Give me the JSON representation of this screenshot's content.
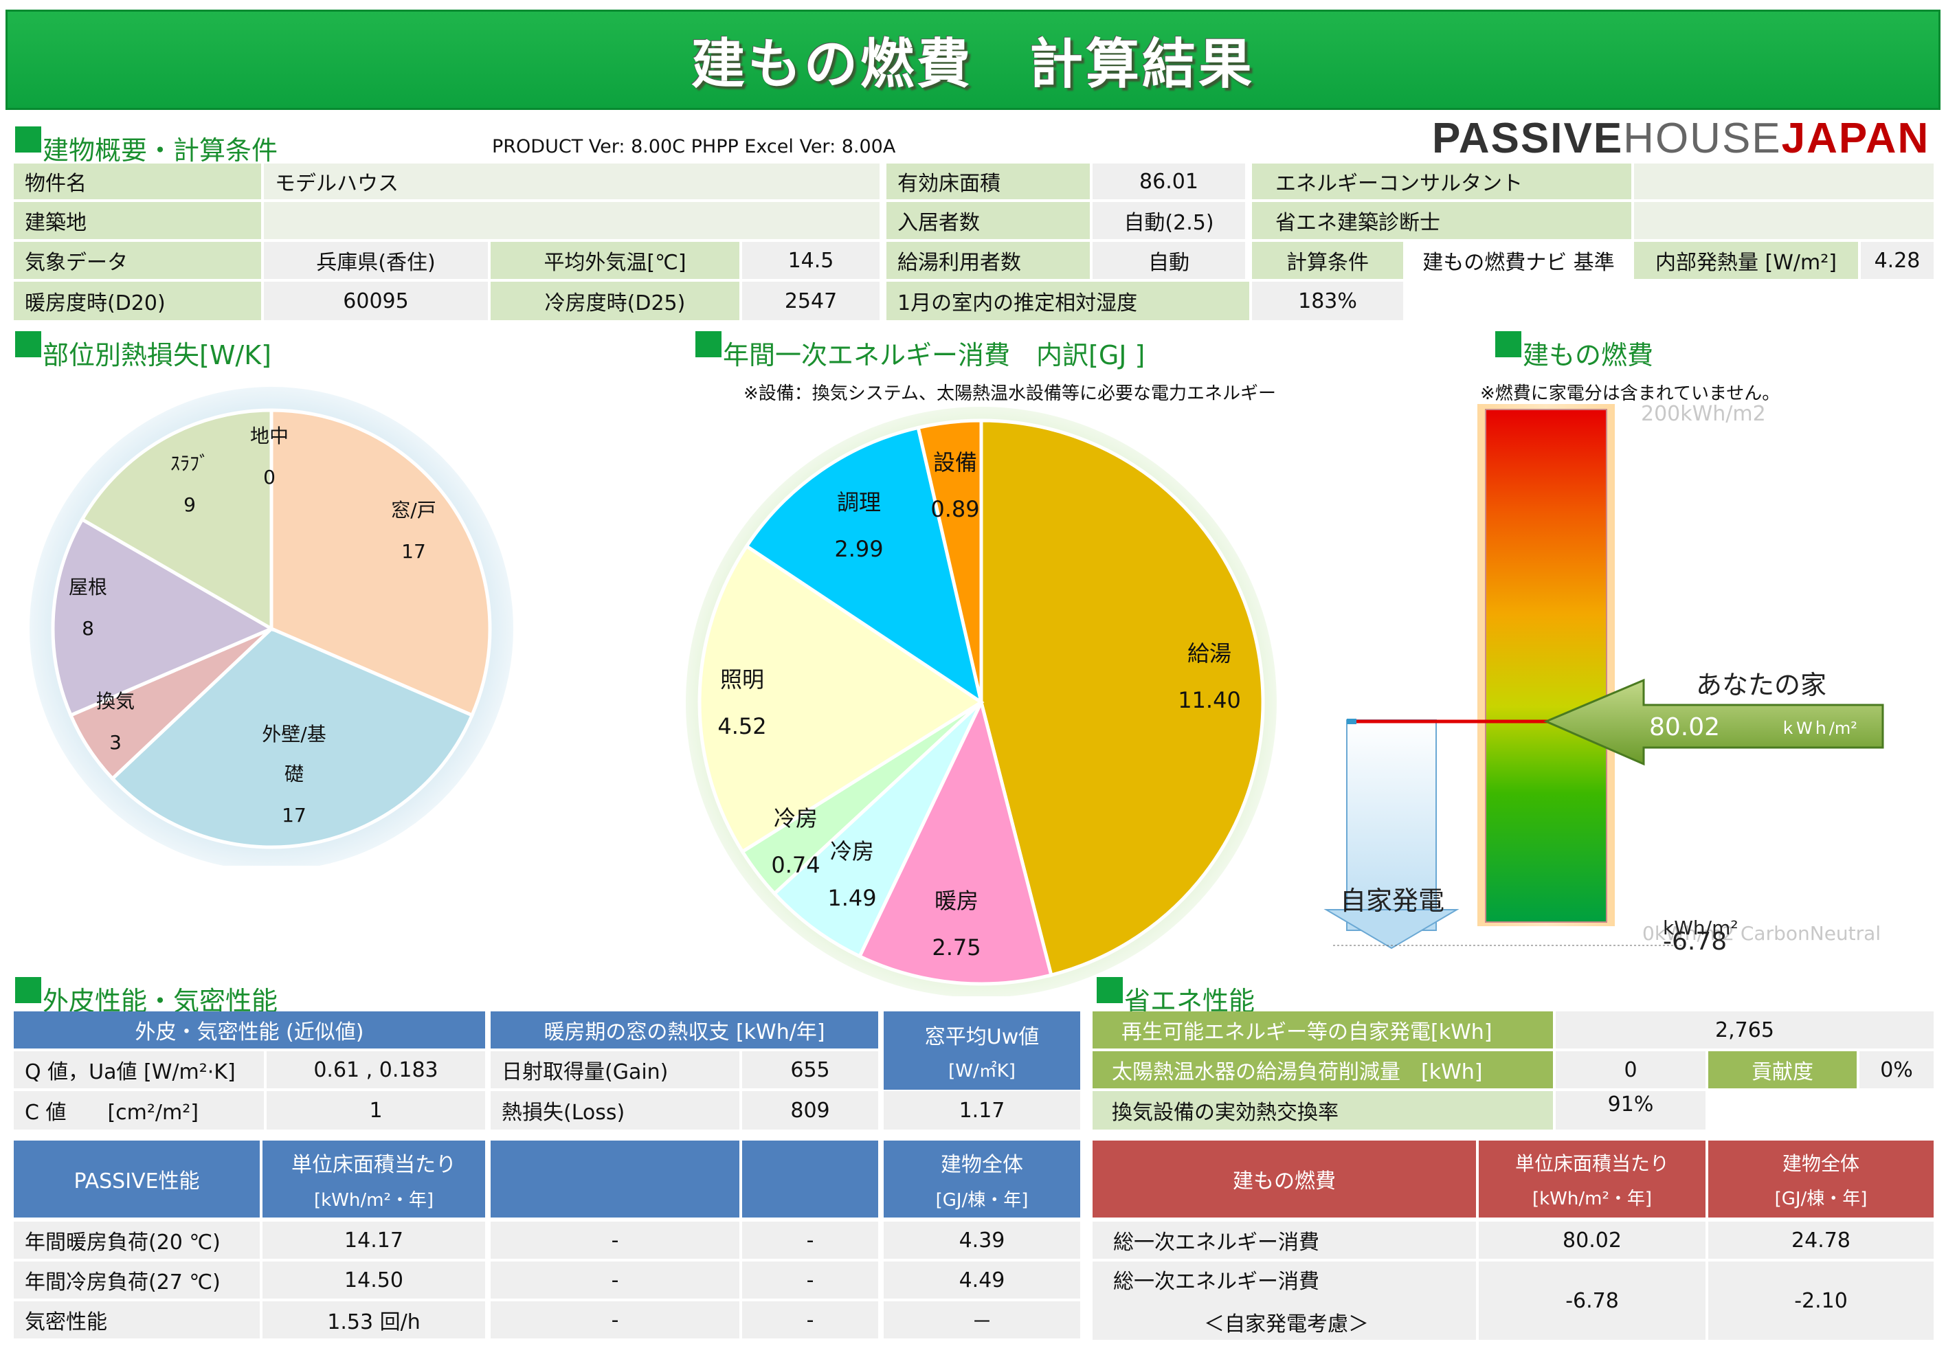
{
  "header": {
    "title": "建もの燃費　計算結果",
    "logo_a": "PASSIVE",
    "logo_b": "HOUSE",
    "logo_c": "JAPAN"
  },
  "overview": {
    "heading": "建物概要・計算条件",
    "version": "PRODUCT Ver: 8.00C  PHPP Excel Ver: 8.00A",
    "property_label": "物件名",
    "property_value": "モデルハウス",
    "site_label": "建築地",
    "site_value": "",
    "weather_label": "気象データ",
    "weather_value": "兵庫県(香住)",
    "avg_temp_label": "平均外気温[℃]",
    "avg_temp_value": "14.5",
    "hdd_label": "暖房度時(D20)",
    "hdd_value": "60095",
    "cdd_label": "冷房度時(D25)",
    "cdd_value": "2547",
    "floor_area_label": "有効床面積",
    "floor_area_value": "86.01",
    "occupants_label": "入居者数",
    "occupants_value": "自動(2.5)",
    "hotwater_users_label": "給湯利用者数",
    "hotwater_users_value": "自動",
    "humidity_label": "1月の室内の推定相対湿度",
    "humidity_value": "183%",
    "consultant_label": "エネルギーコンサルタント",
    "consultant_value": "",
    "diagnostician_label": "省エネ建築診断士",
    "diagnostician_value": "",
    "calc_cond_label": "計算条件",
    "calc_cond_value": "建もの燃費ナビ 基準",
    "internal_gain_label": "内部発熱量 [W/m²]",
    "internal_gain_value": "4.28"
  },
  "heat_loss": {
    "heading": "部位別熱損失[W/K]",
    "chart_data": {
      "type": "pie",
      "title": "部位別熱損失[W/K]",
      "slices": [
        {
          "label": "窓/戸",
          "value": 17,
          "color": "#fbd5b5"
        },
        {
          "label": "外壁/基礎",
          "value": 17,
          "color": "#b7dde8"
        },
        {
          "label": "換気",
          "value": 3,
          "color": "#e6b9b8"
        },
        {
          "label": "屋根",
          "value": 8,
          "color": "#ccc1da"
        },
        {
          "label": "ｽﾗﾌﾞ",
          "value": 9,
          "color": "#d7e4bd"
        },
        {
          "label": "地中",
          "value": 0,
          "color": "#c3d69b"
        }
      ],
      "labels": [
        {
          "text": "窓/戸",
          "value": "17"
        },
        {
          "text": "外壁/基",
          "text2": "礎",
          "value": "17"
        },
        {
          "text": "換気",
          "value": "3"
        },
        {
          "text": "屋根",
          "value": "8"
        },
        {
          "text": "ｽﾗﾌﾞ",
          "value": "9"
        },
        {
          "text": "地中",
          "value": "0"
        }
      ]
    }
  },
  "energy": {
    "heading": "年間一次エネルギー消費　内訳[GJ ]",
    "note": "※設備：換気システム、太陽熱温水設備等に必要な電力エネルギー",
    "chart_data": {
      "type": "pie",
      "title": "年間一次エネルギー消費　内訳[GJ ]",
      "slices": [
        {
          "label": "給湯",
          "value": 11.4,
          "color": "#e5b800"
        },
        {
          "label": "暖房",
          "value": 2.75,
          "color": "#ff99cc"
        },
        {
          "label": "冷房",
          "value": 1.49,
          "color": "#ccffff"
        },
        {
          "label": "冷房",
          "value": 0.74,
          "color": "#ccffcc"
        },
        {
          "label": "照明",
          "value": 4.52,
          "color": "#ffffcc"
        },
        {
          "label": "調理",
          "value": 2.99,
          "color": "#00ccff"
        },
        {
          "label": "設備",
          "value": 0.89,
          "color": "#ff9900"
        }
      ],
      "labels": [
        {
          "text": "給湯",
          "value": "11.40"
        },
        {
          "text": "暖房",
          "value": "2.75"
        },
        {
          "text": "冷房",
          "value": "1.49"
        },
        {
          "text": "冷房",
          "value": "0.74"
        },
        {
          "text": "照明",
          "value": "4.52"
        },
        {
          "text": "調理",
          "value": "2.99"
        },
        {
          "text": "設備",
          "value": "0.89"
        }
      ]
    }
  },
  "fuel": {
    "heading": "建もの燃費",
    "note": "※燃費に家電分は含まれていません。",
    "scale_top": "200kWh/m2",
    "scale_bottom": "0kWh/m2 CarbonNeutral",
    "your_home_label": "あなたの家",
    "your_home_value": "80.02",
    "your_home_unit": "ｋWｈ/m²",
    "self_gen_label": "自家発電",
    "self_gen_value": "-6.78",
    "self_gen_unit": "kWh/m²",
    "chart_data": {
      "type": "bar",
      "title": "建もの燃費",
      "scale": [
        0,
        200
      ],
      "your_home": 80.02,
      "self_generation": -6.78
    }
  },
  "envelope": {
    "heading": "外皮性能・気密性能",
    "col1_header": "外皮・気密性能 (近似値)",
    "col2_header": "暖房期の窓の熱収支 [kWh/年]",
    "col3_header_a": "窓平均Uw値",
    "col3_header_b": "[W/㎡K]",
    "q_label": "Q 値，Ua値 [W/m²·K]",
    "q_value": "0.61 , 0.183",
    "c_label": "C 値　　[cm²/m²]",
    "c_value": "1",
    "gain_label": "日射取得量(Gain)",
    "gain_value": "655",
    "loss_label": "熱損失(Loss)",
    "loss_value": "809",
    "uw_value": "1.17"
  },
  "passive": {
    "header_title": "PASSIVE性能",
    "header_unit_area_a": "単位床面積当たり",
    "header_unit_area_b": "[kWh/m²・年]",
    "header_total_a": "建物全体",
    "header_total_b": "[GJ/棟・年]",
    "rows": [
      {
        "label": "年間暖房負荷(20 ℃)",
        "area": "14.17",
        "c3": "-",
        "c4": "-",
        "total": "4.39"
      },
      {
        "label": "年間冷房負荷(27 ℃)",
        "area": "14.50",
        "c3": "-",
        "c4": "-",
        "total": "4.49"
      },
      {
        "label": "気密性能",
        "area": "1.53 回/h",
        "c3": "-",
        "c4": "-",
        "total": "－"
      }
    ]
  },
  "savings": {
    "heading": "省エネ性能",
    "renew_label": "再生可能エネルギー等の自家発電[kWh]",
    "renew_value": "2,765",
    "solar_label": "太陽熱温水器の給湯負荷削減量　[kWh]",
    "solar_value": "0",
    "contrib_label": "貢献度",
    "contrib_value": "0%",
    "vent_label": "換気設備の実効熱交換率",
    "vent_value": "91%"
  },
  "fuel_table": {
    "header_title": "建もの燃費",
    "header_unit_area_a": "単位床面積当たり",
    "header_unit_area_b": "[kWh/m²・年]",
    "header_total_a": "建物全体",
    "header_total_b": "[GJ/棟・年]",
    "row1_label": "総一次エネルギー消費",
    "row1_area": "80.02",
    "row1_total": "24.78",
    "row2_label_a": "総一次エネルギー消費",
    "row2_label_b": "＜自家発電考慮＞",
    "row2_area": "-6.78",
    "row2_total": "-2.10"
  }
}
